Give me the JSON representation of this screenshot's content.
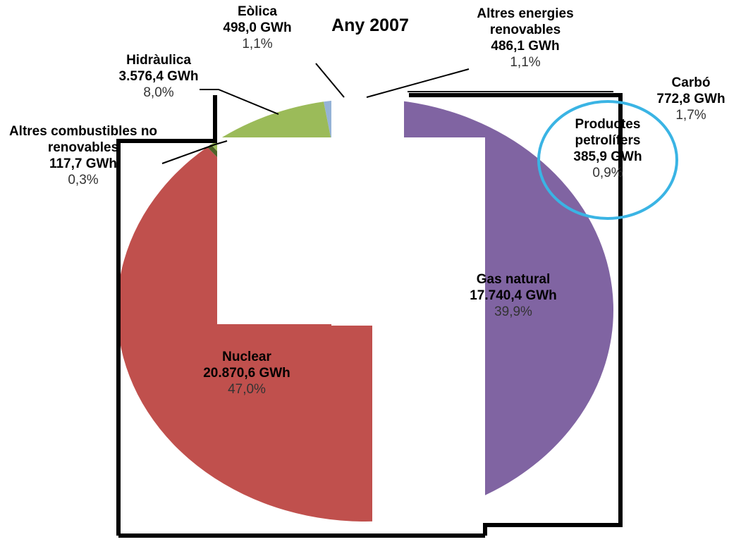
{
  "chart_data": {
    "type": "pie",
    "title": "Any 2007",
    "categories": [
      "Carbó",
      "Productes petrolífers",
      "Gas natural",
      "Nuclear",
      "Altres combustibles no renovables",
      "Hidràulica",
      "Eòlica",
      "Altres energies renovables"
    ],
    "values": [
      1.7,
      0.9,
      39.9,
      47.0,
      0.3,
      8.0,
      1.1,
      1.1
    ],
    "value_labels": [
      "1,7%",
      "0,9%",
      "39,9%",
      "47,0%",
      "0,3%",
      "8,0%",
      "1,1%",
      "1,1%"
    ],
    "gwh_labels": [
      "772,8 GWh",
      "385,9 GWh",
      "17.740,4 GWh",
      "20.870,6 GWh",
      "117,7 GWh",
      "3.576,4 GWh",
      "498,0 GWh",
      "486,1 GWh"
    ],
    "colors": [
      "#555555",
      "#e8a33c",
      "#8064a2",
      "#c0504d",
      "#4f6228",
      "#9bbb59",
      "#95b3d7",
      "#e6a0a0"
    ]
  }
}
